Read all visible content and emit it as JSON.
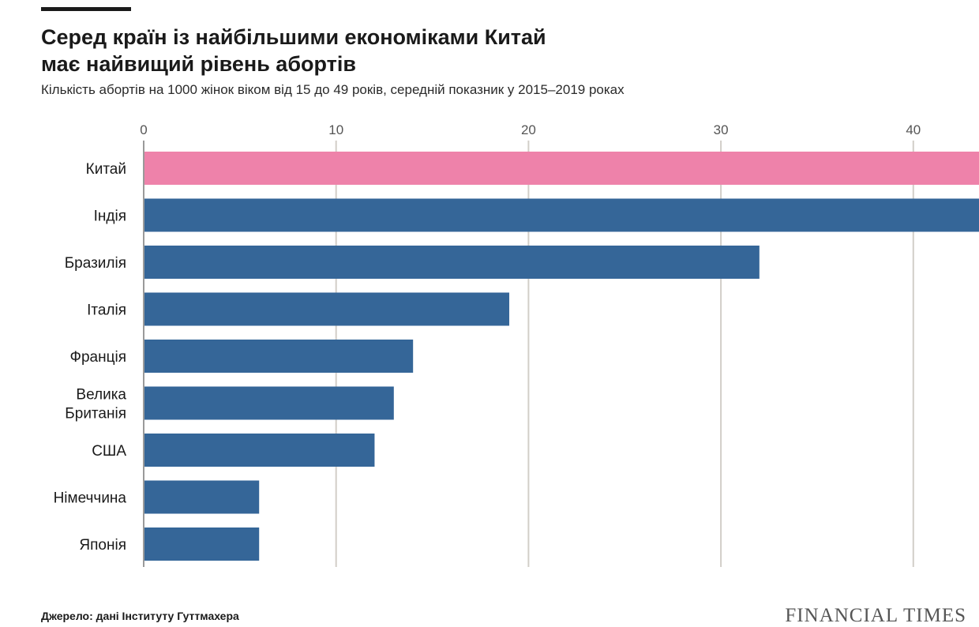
{
  "title_line1": "Серед країн із найбільшими економіками Китай",
  "title_line2": "має найвищий рівень абортів",
  "subtitle": "Кількість абортів на 1000 жінок віком від 15 до 49 років, середній показник у 2015–2019 роках",
  "source": "Джерело: дані Інституту Гуттмахера",
  "brand": "FINANCIAL TIMES",
  "colors": {
    "highlight": "#ee82aa",
    "bar": "#356698",
    "grid": "#d2cec8",
    "tick": "#555555"
  },
  "chart_data": {
    "type": "bar",
    "orientation": "horizontal",
    "axis_position": "top",
    "categories": [
      "Китай",
      "Індія",
      "Бразилія",
      "Італія",
      "Франція",
      "Велика Британія",
      "США",
      "Німеччина",
      "Японія"
    ],
    "category_lines": [
      [
        "Китай"
      ],
      [
        "Індія"
      ],
      [
        "Бразилія"
      ],
      [
        "Італія"
      ],
      [
        "Франція"
      ],
      [
        "Велика",
        "Британія"
      ],
      [
        "США"
      ],
      [
        "Німеччина"
      ],
      [
        "Японія"
      ]
    ],
    "values": [
      43.5,
      43.5,
      32,
      19,
      14,
      13,
      12,
      6,
      6
    ],
    "highlight": [
      "Китай"
    ],
    "xlim": [
      0,
      43.5
    ],
    "xticks": [
      0,
      10,
      20,
      30,
      40
    ],
    "grid": true
  }
}
